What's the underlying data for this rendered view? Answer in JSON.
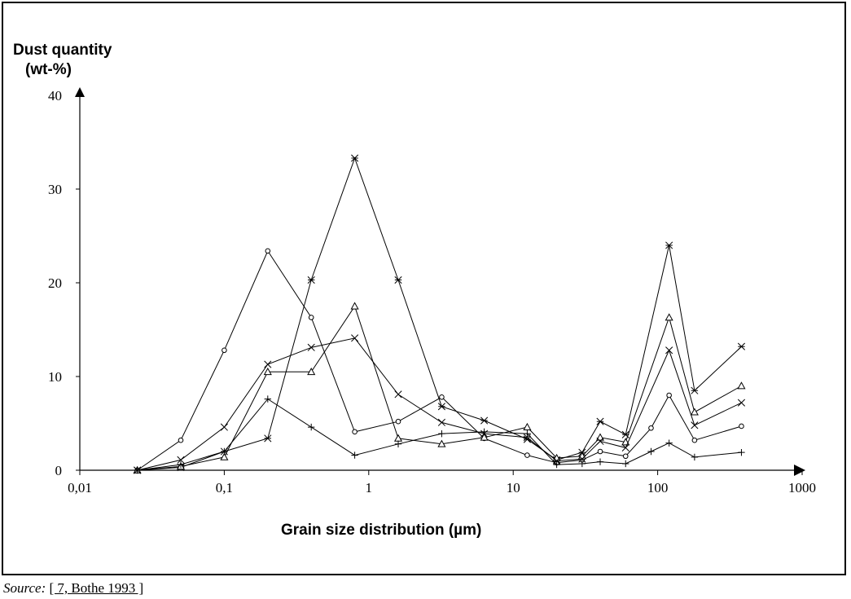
{
  "chart_data": {
    "type": "line",
    "ylabel_line1": "Dust quantity",
    "ylabel_line2": "(wt-%)",
    "xlabel": "Grain size distribution (µm)",
    "x_scale": "log",
    "xlim": [
      0.01,
      1000
    ],
    "ylim": [
      0,
      40
    ],
    "x_ticks": [
      {
        "value": 0.01,
        "label": "0,01"
      },
      {
        "value": 0.1,
        "label": "0,1"
      },
      {
        "value": 1,
        "label": "1"
      },
      {
        "value": 10,
        "label": "10"
      },
      {
        "value": 100,
        "label": "100"
      },
      {
        "value": 1000,
        "label": "1000"
      }
    ],
    "y_ticks": [
      {
        "value": 0,
        "label": "0"
      },
      {
        "value": 10,
        "label": "10"
      },
      {
        "value": 20,
        "label": "20"
      },
      {
        "value": 30,
        "label": "30"
      },
      {
        "value": 40,
        "label": "40"
      }
    ],
    "grid": false,
    "legend": "none",
    "series": [
      {
        "marker": "circle",
        "x": [
          0.025,
          0.05,
          0.1,
          0.2,
          0.4,
          0.8,
          1.6,
          3.2,
          6.3,
          12.5,
          20,
          30,
          40,
          60,
          90,
          120,
          180,
          380
        ],
        "y": [
          0,
          3.2,
          12.8,
          23.4,
          16.3,
          4.1,
          5.2,
          7.8,
          3.4,
          1.6,
          0.8,
          1.1,
          2.0,
          1.5,
          4.5,
          8.0,
          3.2,
          4.7
        ]
      },
      {
        "marker": "star",
        "x": [
          0.025,
          0.05,
          0.1,
          0.2,
          0.4,
          0.8,
          1.6,
          3.2,
          6.3,
          12.5,
          20,
          30,
          40,
          60,
          120,
          180,
          380
        ],
        "y": [
          0,
          0.3,
          2.0,
          3.4,
          20.3,
          33.3,
          20.3,
          6.8,
          5.3,
          3.3,
          1.1,
          1.9,
          5.2,
          3.8,
          24.0,
          8.5,
          13.2
        ]
      },
      {
        "marker": "triangle",
        "x": [
          0.025,
          0.05,
          0.1,
          0.2,
          0.4,
          0.8,
          1.6,
          3.2,
          6.3,
          12.5,
          20,
          30,
          40,
          60,
          120,
          180,
          380
        ],
        "y": [
          0,
          0.4,
          1.4,
          10.5,
          10.5,
          17.5,
          3.4,
          2.8,
          3.5,
          4.6,
          1.3,
          1.5,
          3.5,
          3.0,
          16.3,
          6.2,
          9.0
        ]
      },
      {
        "marker": "cross",
        "x": [
          0.025,
          0.05,
          0.1,
          0.2,
          0.4,
          0.8,
          1.6,
          3.2,
          6.3,
          12.5,
          20,
          30,
          40,
          60,
          120,
          180,
          380
        ],
        "y": [
          0,
          1.1,
          4.6,
          11.3,
          13.1,
          14.1,
          8.1,
          5.1,
          3.9,
          3.5,
          1.0,
          1.2,
          3.1,
          2.4,
          12.8,
          4.8,
          7.2
        ]
      },
      {
        "marker": "plus",
        "x": [
          0.025,
          0.05,
          0.1,
          0.2,
          0.4,
          0.8,
          1.6,
          3.2,
          6.3,
          12.5,
          20,
          30,
          40,
          60,
          90,
          120,
          180,
          380
        ],
        "y": [
          0,
          0.6,
          2.0,
          7.6,
          4.6,
          1.6,
          2.8,
          3.9,
          4.1,
          3.9,
          0.6,
          0.7,
          0.9,
          0.7,
          2.0,
          2.9,
          1.4,
          1.9
        ]
      }
    ]
  },
  "source": {
    "prefix": "Source:",
    "ref": "[ 7, Bothe 1993 ]"
  }
}
